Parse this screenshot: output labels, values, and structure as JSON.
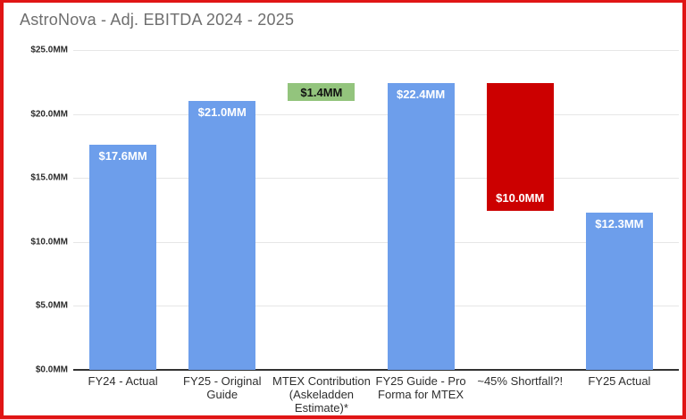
{
  "chart_data": {
    "type": "bar",
    "title": "AstroNova - Adj. EBITDA 2024 - 2025",
    "ylim": [
      0,
      25
    ],
    "grid": true,
    "y_ticks": [
      {
        "value": 25,
        "label": "$25.0MM"
      },
      {
        "value": 20,
        "label": "$20.0MM"
      },
      {
        "value": 15,
        "label": "$15.0MM"
      },
      {
        "value": 10,
        "label": "$10.0MM"
      },
      {
        "value": 5,
        "label": "$5.0MM"
      },
      {
        "value": 0,
        "label": "$0.0MM"
      }
    ],
    "categories": [
      "FY24 - Actual",
      "FY25 - Original Guide",
      "MTEX Contribution (Askeladden Estimate)*",
      "FY25 Guide - Pro Forma for MTEX",
      "~45% Shortfall?!",
      "FY25 Actual"
    ],
    "bars": [
      {
        "category": "FY24 - Actual",
        "value_label": "$17.6MM",
        "from": 0,
        "to": 17.6,
        "color": "#6d9eeb",
        "label_color": "#ffffff",
        "label_pos": "top"
      },
      {
        "category": "FY25 - Original Guide",
        "value_label": "$21.0MM",
        "from": 0,
        "to": 21.0,
        "color": "#6d9eeb",
        "label_color": "#ffffff",
        "label_pos": "top"
      },
      {
        "category": "MTEX Contribution (Askeladden Estimate)*",
        "value_label": "$1.4MM",
        "from": 21.0,
        "to": 22.4,
        "color": "#93c47d",
        "label_color": "#111111",
        "label_pos": "center"
      },
      {
        "category": "FY25 Guide - Pro Forma for MTEX",
        "value_label": "$22.4MM",
        "from": 0,
        "to": 22.4,
        "color": "#6d9eeb",
        "label_color": "#ffffff",
        "label_pos": "top"
      },
      {
        "category": "~45% Shortfall?!",
        "value_label": "$10.0MM",
        "from": 12.4,
        "to": 22.4,
        "color": "#cc0000",
        "label_color": "#ffffff",
        "label_pos": "bottom"
      },
      {
        "category": "FY25 Actual",
        "value_label": "$12.3MM",
        "from": 0,
        "to": 12.3,
        "color": "#6d9eeb",
        "label_color": "#ffffff",
        "label_pos": "top"
      }
    ],
    "colors": {
      "bar_blue": "#6d9eeb",
      "bar_green": "#93c47d",
      "bar_red": "#cc0000",
      "frame_border": "#e01515",
      "gridline": "#e6e6e6",
      "axis_line": "#333333",
      "title_text": "#6e6e6e"
    }
  }
}
